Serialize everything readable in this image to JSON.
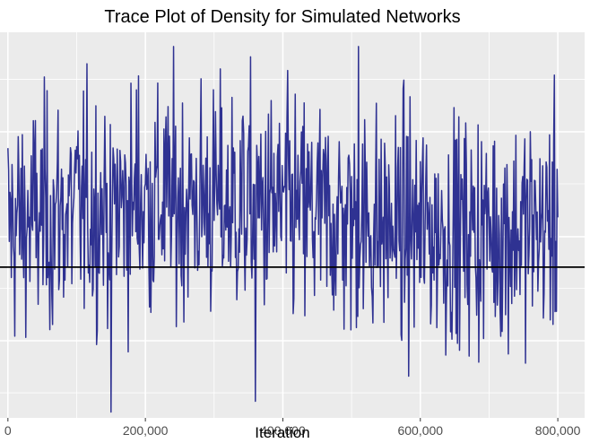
{
  "chart_data": {
    "type": "line",
    "title": "Trace Plot of Density for Simulated Networks",
    "xlabel": "Iteration",
    "ylabel": "",
    "xlim": [
      -11500,
      839000
    ],
    "ylim": [
      0.0,
      1.0
    ],
    "x_ticks": [
      0,
      200000,
      400000,
      600000,
      800000
    ],
    "x_tick_labels": [
      "0",
      "200,000",
      "400,000",
      "600,000",
      "800,000"
    ],
    "y_ticks_visible": false,
    "grid": true,
    "legend": "none",
    "reference_line": {
      "y": 0.391,
      "label": ""
    },
    "series": [
      {
        "x_start": 0,
        "x_end": 800000,
        "n_points": 800,
        "min": 0.015,
        "max": 0.963,
        "mean": 0.52,
        "values_note_points": [
          {
            "x": 150000,
            "y": 0.015
          },
          {
            "x": 190000,
            "y": 0.887
          },
          {
            "x": 360000,
            "y": 0.043
          },
          {
            "x": 510000,
            "y": 0.963
          },
          {
            "x": 800000,
            "y": 0.52
          }
        ]
      }
    ],
    "colors": {
      "series": "#2f3292",
      "reference_line": "#000000",
      "panel": "#ebebeb",
      "grid": "#ffffff"
    }
  }
}
